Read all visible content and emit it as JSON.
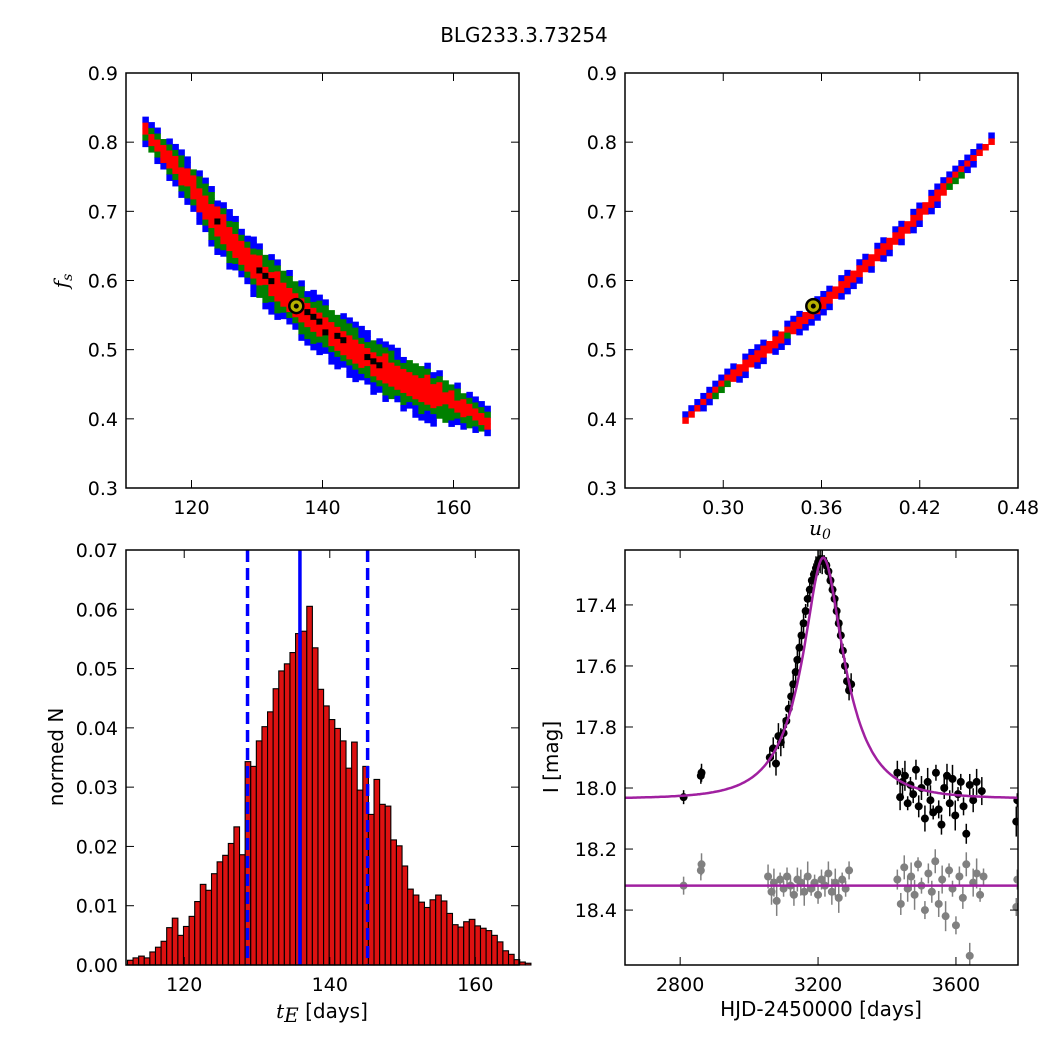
{
  "figure": {
    "title": "BLG233.3.73254"
  },
  "chart_data": [
    {
      "panel": "top-left",
      "type": "heatmap",
      "xlabel": "",
      "ylabel": "f",
      "ylabel_sub": "s",
      "xlim": [
        110,
        170
      ],
      "ylim": [
        0.3,
        0.9
      ],
      "xticks": [
        120,
        140,
        160
      ],
      "xtick_labels": [
        "120",
        "140",
        "160"
      ],
      "yticks": [
        0.3,
        0.4,
        0.5,
        0.6,
        0.7,
        0.8,
        0.9
      ],
      "ytick_labels": [
        "0.3",
        "0.4",
        "0.5",
        "0.6",
        "0.7",
        "0.8",
        "0.9"
      ],
      "colors": {
        "outer": "#0000ff",
        "middle": "#008000",
        "inner": "#ff0000",
        "core": "#000000",
        "best_fit": "#b5b000"
      },
      "ridge": [
        [
          112.5,
          0.82
        ],
        [
          118,
          0.76
        ],
        [
          124,
          0.68
        ],
        [
          130,
          0.615
        ],
        [
          136,
          0.565
        ],
        [
          142,
          0.52
        ],
        [
          148,
          0.48
        ],
        [
          154,
          0.45
        ],
        [
          160,
          0.425
        ],
        [
          165,
          0.4
        ]
      ],
      "best_fit": {
        "x": 136,
        "y": 0.563
      }
    },
    {
      "panel": "top-right",
      "type": "heatmap",
      "xlabel": "u",
      "xlabel_sub": "0",
      "ylabel": "",
      "xlim": [
        0.24,
        0.48
      ],
      "ylim": [
        0.3,
        0.9
      ],
      "xticks": [
        0.3,
        0.36,
        0.42,
        0.48
      ],
      "xtick_labels": [
        "0.30",
        "0.36",
        "0.42",
        "0.48"
      ],
      "yticks": [
        0.3,
        0.4,
        0.5,
        0.6,
        0.7,
        0.8,
        0.9
      ],
      "ytick_labels": [
        "0.3",
        "0.4",
        "0.5",
        "0.6",
        "0.7",
        "0.8",
        "0.9"
      ],
      "colors": {
        "outer": "#0000ff",
        "middle": "#008000",
        "inner": "#ff0000",
        "core": "#000000",
        "best_fit": "#b5b000"
      },
      "ridge": [
        [
          0.275,
          0.405
        ],
        [
          0.3,
          0.46
        ],
        [
          0.33,
          0.515
        ],
        [
          0.355,
          0.563
        ],
        [
          0.38,
          0.615
        ],
        [
          0.41,
          0.68
        ],
        [
          0.44,
          0.755
        ],
        [
          0.465,
          0.815
        ]
      ],
      "best_fit": {
        "x": 0.355,
        "y": 0.563
      }
    },
    {
      "panel": "bottom-left",
      "type": "bar",
      "xlabel": "t",
      "xlabel_sub": "E",
      "xlabel_suffix": " [days]",
      "ylabel": "normed N",
      "xlim": [
        112,
        166
      ],
      "ylim": [
        0,
        0.07
      ],
      "xticks": [
        120,
        140,
        160
      ],
      "xtick_labels": [
        "120",
        "140",
        "160"
      ],
      "yticks": [
        0,
        0.01,
        0.02,
        0.03,
        0.04,
        0.05,
        0.06,
        0.07
      ],
      "ytick_labels": [
        "0.00",
        "0.01",
        "0.02",
        "0.03",
        "0.04",
        "0.05",
        "0.06",
        "0.07"
      ],
      "bin_start": 112.2,
      "bin_width": 0.77,
      "values": [
        0.0008,
        0.0012,
        0.0015,
        0.0012,
        0.0022,
        0.003,
        0.004,
        0.0063,
        0.0079,
        0.005,
        0.0065,
        0.0082,
        0.0107,
        0.0136,
        0.0126,
        0.0154,
        0.0174,
        0.0185,
        0.0205,
        0.0233,
        0.0186,
        0.0343,
        0.0335,
        0.0378,
        0.0402,
        0.0427,
        0.0466,
        0.0496,
        0.0508,
        0.0527,
        0.0559,
        0.0563,
        0.0605,
        0.0535,
        0.0465,
        0.0437,
        0.0414,
        0.0399,
        0.0378,
        0.0332,
        0.0376,
        0.0295,
        0.0335,
        0.0254,
        0.0313,
        0.0271,
        0.0268,
        0.0211,
        0.0201,
        0.0167,
        0.0128,
        0.0118,
        0.0106,
        0.0097,
        0.011,
        0.0118,
        0.0108,
        0.0087,
        0.0068,
        0.0064,
        0.0073,
        0.0077,
        0.0066,
        0.0062,
        0.0058,
        0.005,
        0.0039,
        0.0024,
        0.0018,
        0.0009,
        0.0005,
        0.0003
      ],
      "bar_color": "#dd1111",
      "vlines": [
        {
          "x": 128.7,
          "style": "dashed",
          "color": "#0000ff"
        },
        {
          "x": 135.9,
          "style": "solid",
          "color": "#0000ff"
        },
        {
          "x": 145.2,
          "style": "dashed",
          "color": "#0000ff"
        }
      ]
    },
    {
      "panel": "bottom-right",
      "type": "scatter",
      "xlabel": "HJD-2450000 [days]",
      "ylabel": "I [mag]",
      "xlim": [
        2640,
        3780
      ],
      "ylim": [
        18.58,
        17.22
      ],
      "xticks": [
        2800,
        3200,
        3600
      ],
      "xtick_labels": [
        "2800",
        "3200",
        "3600"
      ],
      "yticks": [
        17.4,
        17.6,
        17.8,
        18.0,
        18.2,
        18.4
      ],
      "ytick_labels": [
        "17.4",
        "17.6",
        "17.8",
        "18.0",
        "18.2",
        "18.4"
      ],
      "model": {
        "baseline": 18.035,
        "peak_mag": 17.245,
        "t0": 3215,
        "tE": 136,
        "u0": 0.355,
        "color": "#a020a0"
      },
      "flat_line": {
        "y": 18.32,
        "color": "#a020a0"
      },
      "series": [
        {
          "color": "#000000",
          "points": [
            [
              2810,
              18.03
            ],
            [
              2860,
              17.96
            ],
            [
              2862,
              17.95
            ],
            [
              3060,
              17.9
            ],
            [
              3070,
              17.87
            ],
            [
              3078,
              17.92
            ],
            [
              3085,
              17.83
            ],
            [
              3092,
              17.85
            ],
            [
              3100,
              17.82
            ],
            [
              3108,
              17.78
            ],
            [
              3115,
              17.74
            ],
            [
              3122,
              17.7
            ],
            [
              3128,
              17.66
            ],
            [
              3135,
              17.62
            ],
            [
              3140,
              17.58
            ],
            [
              3146,
              17.54
            ],
            [
              3152,
              17.5
            ],
            [
              3158,
              17.46
            ],
            [
              3164,
              17.42
            ],
            [
              3170,
              17.38
            ],
            [
              3176,
              17.35
            ],
            [
              3182,
              17.32
            ],
            [
              3188,
              17.3
            ],
            [
              3194,
              17.28
            ],
            [
              3200,
              17.26
            ],
            [
              3206,
              17.25
            ],
            [
              3212,
              17.25
            ],
            [
              3218,
              17.26
            ],
            [
              3224,
              17.27
            ],
            [
              3230,
              17.29
            ],
            [
              3236,
              17.32
            ],
            [
              3242,
              17.35
            ],
            [
              3248,
              17.38
            ],
            [
              3254,
              17.42
            ],
            [
              3260,
              17.46
            ],
            [
              3266,
              17.5
            ],
            [
              3272,
              17.55
            ],
            [
              3278,
              17.6
            ],
            [
              3284,
              17.65
            ],
            [
              3290,
              17.68
            ],
            [
              3296,
              17.66
            ],
            [
              3430,
              17.95
            ],
            [
              3438,
              18.03
            ],
            [
              3445,
              17.98
            ],
            [
              3452,
              17.96
            ],
            [
              3460,
              18.05
            ],
            [
              3468,
              17.99
            ],
            [
              3476,
              18.02
            ],
            [
              3484,
              17.94
            ],
            [
              3492,
              18.06
            ],
            [
              3500,
              18.0
            ],
            [
              3510,
              18.1
            ],
            [
              3518,
              17.98
            ],
            [
              3526,
              18.04
            ],
            [
              3534,
              18.08
            ],
            [
              3542,
              17.95
            ],
            [
              3550,
              18.07
            ],
            [
              3558,
              18.12
            ],
            [
              3566,
              18.0
            ],
            [
              3574,
              17.96
            ],
            [
              3582,
              18.05
            ],
            [
              3590,
              17.97
            ],
            [
              3598,
              18.09
            ],
            [
              3606,
              18.02
            ],
            [
              3614,
              17.98
            ],
            [
              3622,
              18.06
            ],
            [
              3630,
              18.15
            ],
            [
              3640,
              17.99
            ],
            [
              3650,
              18.04
            ],
            [
              3660,
              17.98
            ],
            [
              3675,
              18.01
            ],
            [
              3775,
              18.11
            ],
            [
              3778,
              18.04
            ]
          ]
        },
        {
          "color": "#808080",
          "points": [
            [
              2810,
              18.32
            ],
            [
              2860,
              18.27
            ],
            [
              2862,
              18.25
            ],
            [
              3055,
              18.29
            ],
            [
              3065,
              18.34
            ],
            [
              3072,
              18.31
            ],
            [
              3080,
              18.37
            ],
            [
              3090,
              18.3
            ],
            [
              3100,
              18.33
            ],
            [
              3110,
              18.29
            ],
            [
              3120,
              18.32
            ],
            [
              3130,
              18.35
            ],
            [
              3140,
              18.3
            ],
            [
              3150,
              18.31
            ],
            [
              3160,
              18.34
            ],
            [
              3170,
              18.29
            ],
            [
              3180,
              18.33
            ],
            [
              3190,
              18.31
            ],
            [
              3200,
              18.35
            ],
            [
              3210,
              18.3
            ],
            [
              3220,
              18.32
            ],
            [
              3230,
              18.28
            ],
            [
              3240,
              18.34
            ],
            [
              3250,
              18.31
            ],
            [
              3260,
              18.36
            ],
            [
              3270,
              18.3
            ],
            [
              3280,
              18.33
            ],
            [
              3290,
              18.27
            ],
            [
              3430,
              18.3
            ],
            [
              3440,
              18.38
            ],
            [
              3450,
              18.26
            ],
            [
              3460,
              18.33
            ],
            [
              3470,
              18.29
            ],
            [
              3480,
              18.35
            ],
            [
              3490,
              18.25
            ],
            [
              3500,
              18.32
            ],
            [
              3510,
              18.4
            ],
            [
              3520,
              18.28
            ],
            [
              3530,
              18.34
            ],
            [
              3540,
              18.24
            ],
            [
              3550,
              18.38
            ],
            [
              3560,
              18.3
            ],
            [
              3570,
              18.42
            ],
            [
              3580,
              18.27
            ],
            [
              3590,
              18.33
            ],
            [
              3600,
              18.45
            ],
            [
              3610,
              18.29
            ],
            [
              3620,
              18.36
            ],
            [
              3630,
              18.25
            ],
            [
              3640,
              18.55
            ],
            [
              3650,
              18.31
            ],
            [
              3660,
              18.28
            ],
            [
              3670,
              18.35
            ],
            [
              3680,
              18.29
            ],
            [
              3775,
              18.39
            ],
            [
              3778,
              18.3
            ]
          ]
        }
      ]
    }
  ]
}
